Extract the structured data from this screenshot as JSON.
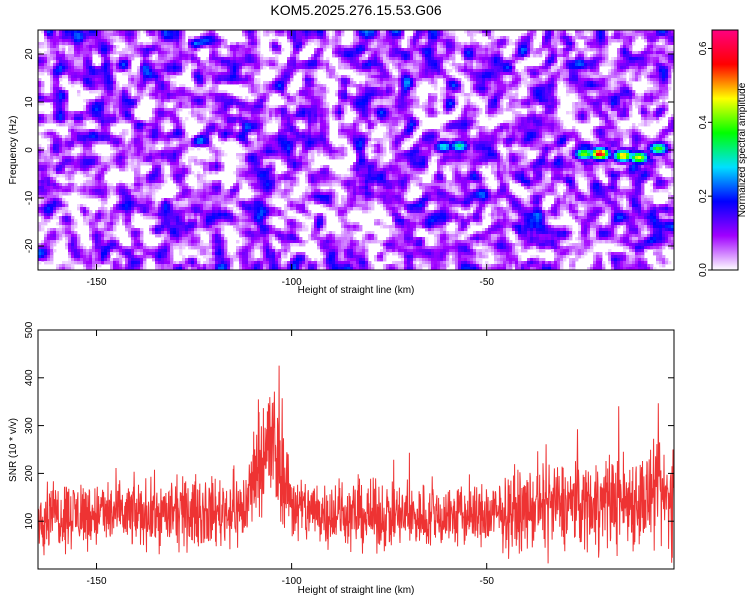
{
  "title": "KOM5.2025.276.15.53.G06",
  "chart_data": [
    {
      "type": "heatmap",
      "xlabel": "Height of straight line (km)",
      "ylabel": "Frequency (Hz)",
      "xlim": [
        -165,
        -2
      ],
      "ylim": [
        -25,
        25
      ],
      "x_ticks": [
        -150,
        -100,
        -50
      ],
      "x_tick_labels": [
        "-150",
        "-100",
        "-50"
      ],
      "y_ticks": [
        -20,
        -10,
        0,
        10,
        20
      ],
      "y_tick_labels": [
        "-20",
        "-10",
        "0",
        "10",
        "20"
      ],
      "colorbar": {
        "label": "Normalized spectral amplitude",
        "range": [
          0,
          0.65
        ],
        "ticks": [
          0,
          0.2,
          0.4,
          0.6
        ],
        "tick_labels": [
          "0.0",
          "0.2",
          "0.4",
          "0.6"
        ],
        "stops": [
          "#ffffff",
          "#a000ff",
          "#0000ff",
          "#00e0ff",
          "#00ff00",
          "#ffff00",
          "#ff0000",
          "#ff0080"
        ]
      },
      "background_noise": {
        "mean_amplitude": 0.1,
        "max_amplitude": 0.17
      },
      "features": [
        {
          "height_km": -61,
          "frequency_hz": 0.7,
          "amplitude": 0.3
        },
        {
          "height_km": -57,
          "frequency_hz": 0.8,
          "amplitude": 0.33
        },
        {
          "height_km": -25,
          "frequency_hz": -0.8,
          "amplitude": 0.42
        },
        {
          "height_km": -21,
          "frequency_hz": -0.8,
          "amplitude": 0.6
        },
        {
          "height_km": -15,
          "frequency_hz": -1.2,
          "amplitude": 0.5
        },
        {
          "height_km": -11,
          "frequency_hz": -1.6,
          "amplitude": 0.46
        },
        {
          "height_km": -6,
          "frequency_hz": 0.3,
          "amplitude": 0.4
        }
      ],
      "grid": false
    },
    {
      "type": "line",
      "xlabel": "Height of straight line (km)",
      "ylabel": "SNR (10 * v/v)",
      "xlim": [
        -165,
        -2
      ],
      "ylim": [
        0,
        500
      ],
      "x_ticks": [
        -150,
        -100,
        -50
      ],
      "x_tick_labels": [
        "-150",
        "-100",
        "-50"
      ],
      "y_ticks": [
        100,
        200,
        300,
        400,
        500
      ],
      "y_tick_labels": [
        "100",
        "200",
        "300",
        "400",
        "500"
      ],
      "series_color": "#ee3333",
      "profile": [
        {
          "x": -165,
          "base": 115,
          "spread": 90
        },
        {
          "x": -150,
          "base": 115,
          "spread": 85
        },
        {
          "x": -125,
          "base": 115,
          "spread": 85
        },
        {
          "x": -112,
          "base": 125,
          "spread": 95
        },
        {
          "x": -108,
          "base": 240,
          "spread": 150
        },
        {
          "x": -105,
          "base": 260,
          "spread": 200
        },
        {
          "x": -102,
          "base": 190,
          "spread": 120
        },
        {
          "x": -99,
          "base": 125,
          "spread": 90
        },
        {
          "x": -80,
          "base": 110,
          "spread": 85
        },
        {
          "x": -50,
          "base": 110,
          "spread": 85
        },
        {
          "x": -30,
          "base": 135,
          "spread": 110
        },
        {
          "x": -2,
          "base": 150,
          "spread": 135
        }
      ],
      "grid": false
    }
  ]
}
